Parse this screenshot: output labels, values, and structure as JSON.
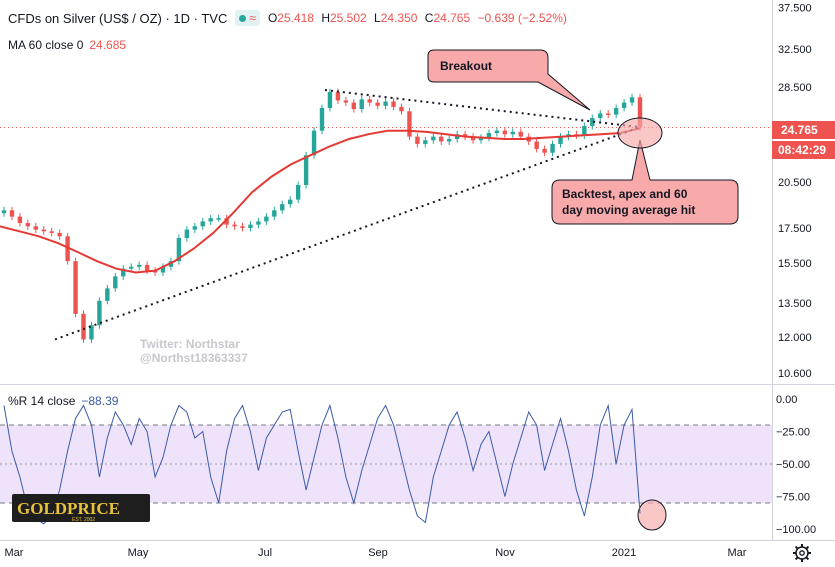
{
  "header": {
    "symbol": "CFDs on Silver (US$ / OZ) · 1D · TVC",
    "open_label": "O",
    "open": "25.418",
    "high_label": "H",
    "high": "25.502",
    "low_label": "L",
    "low": "24.350",
    "close_label": "C",
    "close": "24.765",
    "change": "−0.639 (−2.52%)",
    "ma_label": "MA 60 close 0",
    "ma_value": "24.685",
    "wr_label": "%R 14 close",
    "wr_value": "−88.39"
  },
  "price_tag": "24.765",
  "countdown_tag": "08:42:29",
  "watermark": [
    "Twitter: Northstar",
    "@Northst18363337"
  ],
  "logo": {
    "text": "GOLDPRICE",
    "sub": "EST. 2002"
  },
  "annotations": {
    "breakout": "Breakout",
    "backtest": [
      "Backtest, apex and 60",
      "day moving average hit"
    ]
  },
  "colors": {
    "up": "#26a69a",
    "down": "#ef5350",
    "ma": "#e53935",
    "wr_line": "#3b5ba9",
    "wr_band": "#efe3fb",
    "callout": "#f8a9a9"
  },
  "chart_data": [
    {
      "type": "line",
      "title": "CFDs on Silver (US$ / OZ)",
      "scale": "log",
      "ylim": [
        10.2,
        38.5
      ],
      "price_ticks": [
        "37.500",
        "32.500",
        "28.500",
        "24.765",
        "20.500",
        "17.500",
        "15.500",
        "13.500",
        "12.000",
        "10.600"
      ],
      "x_ticks": [
        "Mar",
        "May",
        "Jul",
        "Sep",
        "Nov",
        "2021",
        "Mar"
      ],
      "series": [
        {
          "name": "Close",
          "values": [
            18.6,
            18.2,
            17.8,
            17.6,
            17.4,
            17.3,
            17.2,
            17.0,
            15.6,
            13.0,
            11.9,
            12.5,
            13.6,
            14.2,
            14.8,
            15.2,
            15.3,
            15.4,
            15.1,
            15.0,
            15.3,
            15.6,
            16.9,
            17.4,
            17.6,
            17.9,
            18.1,
            18.1,
            17.7,
            17.6,
            17.5,
            17.7,
            17.9,
            18.2,
            18.6,
            19.0,
            19.3,
            20.3,
            22.5,
            24.5,
            26.5,
            28.0,
            27.2,
            27.0,
            26.4,
            27.3,
            27.0,
            26.7,
            27.1,
            26.6,
            26.2,
            24.0,
            23.4,
            23.7,
            24.0,
            23.6,
            23.8,
            24.2,
            24.0,
            23.7,
            23.9,
            24.3,
            24.5,
            24.2,
            24.4,
            24.0,
            23.6,
            23.0,
            22.7,
            23.4,
            24.0,
            24.2,
            24.1,
            24.9,
            25.6,
            26.0,
            25.9,
            26.5,
            27.0,
            27.5,
            24.8
          ]
        },
        {
          "name": "MA 60",
          "values": [
            17.6,
            17.3,
            17.0,
            16.6,
            16.1,
            15.6,
            15.2,
            15.0,
            15.1,
            15.6,
            16.3,
            17.2,
            18.4,
            19.8,
            20.9,
            21.8,
            22.5,
            23.2,
            23.8,
            24.2,
            24.5,
            24.5,
            24.4,
            24.2,
            24.0,
            23.9,
            23.8,
            23.8,
            23.9,
            24.0,
            24.1,
            24.2,
            24.3,
            24.7
          ]
        }
      ],
      "trendlines": {
        "upper": [
          28.2,
          24.8
        ],
        "lower": [
          11.9,
          24.8
        ]
      }
    },
    {
      "type": "line",
      "title": "%R 14 close",
      "ylim": [
        -100,
        0
      ],
      "band": [
        -80,
        -20
      ],
      "y_ticks": [
        "0.00",
        "−25.00",
        "−50.00",
        "−75.00",
        "−100.00"
      ],
      "series": [
        {
          "name": "%R",
          "values": [
            -5,
            -40,
            -60,
            -85,
            -92,
            -96,
            -90,
            -70,
            -40,
            -15,
            -5,
            -20,
            -60,
            -30,
            -10,
            -20,
            -35,
            -15,
            -25,
            -60,
            -45,
            -20,
            -5,
            -10,
            -30,
            -25,
            -60,
            -80,
            -40,
            -15,
            -5,
            -25,
            -55,
            -30,
            -20,
            -10,
            -8,
            -40,
            -70,
            -45,
            -20,
            -5,
            -30,
            -60,
            -80,
            -55,
            -35,
            -15,
            -5,
            -20,
            -45,
            -70,
            -90,
            -95,
            -60,
            -40,
            -20,
            -10,
            -30,
            -55,
            -35,
            -25,
            -50,
            -75,
            -50,
            -30,
            -10,
            -20,
            -55,
            -35,
            -15,
            -40,
            -70,
            -90,
            -60,
            -20,
            -5,
            -50,
            -20,
            -8,
            -88
          ]
        }
      ]
    }
  ]
}
